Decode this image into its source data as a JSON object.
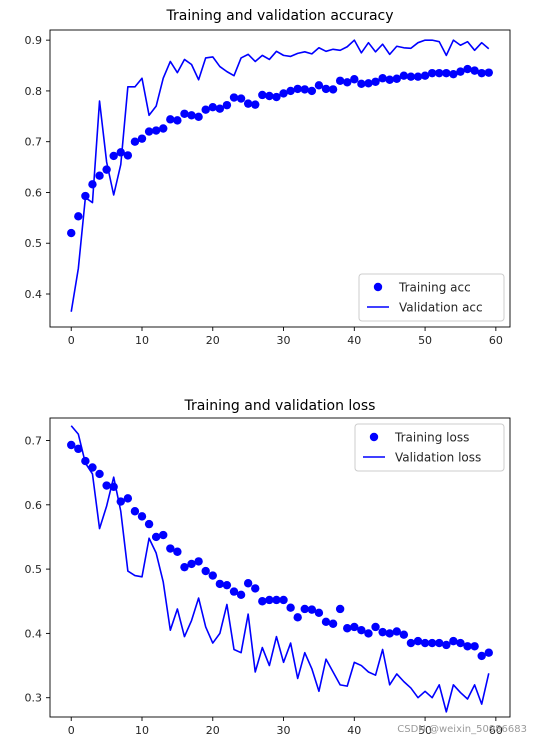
{
  "chart_data": [
    {
      "type": "line",
      "title": "Training and validation accuracy",
      "xlabel": "",
      "ylabel": "",
      "xlim": [
        -3,
        62
      ],
      "ylim": [
        0.335,
        0.92
      ],
      "xticks": [
        0,
        10,
        20,
        30,
        40,
        50,
        60
      ],
      "yticks": [
        0.4,
        0.5,
        0.6,
        0.7,
        0.8,
        0.9
      ],
      "legend": "lower-right",
      "grid": false,
      "series": [
        {
          "name": "Training acc",
          "style": "dots",
          "color": "#0000ff",
          "x": [
            0,
            1,
            2,
            3,
            4,
            5,
            6,
            7,
            8,
            9,
            10,
            11,
            12,
            13,
            14,
            15,
            16,
            17,
            18,
            19,
            20,
            21,
            22,
            23,
            24,
            25,
            26,
            27,
            28,
            29,
            30,
            31,
            32,
            33,
            34,
            35,
            36,
            37,
            38,
            39,
            40,
            41,
            42,
            43,
            44,
            45,
            46,
            47,
            48,
            49,
            50,
            51,
            52,
            53,
            54,
            55,
            56,
            57,
            58,
            59
          ],
          "y": [
            0.52,
            0.553,
            0.593,
            0.616,
            0.633,
            0.645,
            0.672,
            0.679,
            0.673,
            0.7,
            0.706,
            0.72,
            0.722,
            0.726,
            0.744,
            0.742,
            0.755,
            0.752,
            0.749,
            0.763,
            0.768,
            0.765,
            0.772,
            0.787,
            0.785,
            0.775,
            0.773,
            0.792,
            0.79,
            0.788,
            0.795,
            0.8,
            0.804,
            0.803,
            0.8,
            0.811,
            0.804,
            0.803,
            0.82,
            0.817,
            0.823,
            0.814,
            0.815,
            0.818,
            0.825,
            0.822,
            0.824,
            0.83,
            0.828,
            0.828,
            0.83,
            0.835,
            0.835,
            0.835,
            0.833,
            0.838,
            0.843,
            0.84,
            0.835,
            0.836
          ]
        },
        {
          "name": "Validation acc",
          "style": "line",
          "color": "#0000ff",
          "x": [
            0,
            1,
            2,
            3,
            4,
            5,
            6,
            7,
            8,
            9,
            10,
            11,
            12,
            13,
            14,
            15,
            16,
            17,
            18,
            19,
            20,
            21,
            22,
            23,
            24,
            25,
            26,
            27,
            28,
            29,
            30,
            31,
            32,
            33,
            34,
            35,
            36,
            37,
            38,
            39,
            40,
            41,
            42,
            43,
            44,
            45,
            46,
            47,
            48,
            49,
            50,
            51,
            52,
            53,
            54,
            55,
            56,
            57,
            58,
            59
          ],
          "y": [
            0.365,
            0.45,
            0.59,
            0.58,
            0.78,
            0.66,
            0.595,
            0.655,
            0.808,
            0.808,
            0.825,
            0.752,
            0.77,
            0.825,
            0.858,
            0.836,
            0.862,
            0.852,
            0.822,
            0.865,
            0.867,
            0.848,
            0.838,
            0.83,
            0.865,
            0.872,
            0.858,
            0.87,
            0.862,
            0.878,
            0.87,
            0.868,
            0.874,
            0.877,
            0.873,
            0.885,
            0.878,
            0.882,
            0.88,
            0.887,
            0.9,
            0.875,
            0.895,
            0.877,
            0.892,
            0.872,
            0.888,
            0.885,
            0.884,
            0.895,
            0.9,
            0.9,
            0.897,
            0.87,
            0.9,
            0.89,
            0.897,
            0.88,
            0.895,
            0.883
          ]
        }
      ]
    },
    {
      "type": "line",
      "title": "Training and validation loss",
      "xlabel": "",
      "ylabel": "",
      "xlim": [
        -3,
        62
      ],
      "ylim": [
        0.27,
        0.735
      ],
      "xticks": [
        0,
        10,
        20,
        30,
        40,
        50,
        60
      ],
      "yticks": [
        0.3,
        0.4,
        0.5,
        0.6,
        0.7
      ],
      "legend": "top-right",
      "grid": false,
      "series": [
        {
          "name": "Training loss",
          "style": "dots",
          "color": "#0000ff",
          "x": [
            0,
            1,
            2,
            3,
            4,
            5,
            6,
            7,
            8,
            9,
            10,
            11,
            12,
            13,
            14,
            15,
            16,
            17,
            18,
            19,
            20,
            21,
            22,
            23,
            24,
            25,
            26,
            27,
            28,
            29,
            30,
            31,
            32,
            33,
            34,
            35,
            36,
            37,
            38,
            39,
            40,
            41,
            42,
            43,
            44,
            45,
            46,
            47,
            48,
            49,
            50,
            51,
            52,
            53,
            54,
            55,
            56,
            57,
            58,
            59
          ],
          "y": [
            0.693,
            0.687,
            0.668,
            0.658,
            0.648,
            0.63,
            0.628,
            0.605,
            0.61,
            0.59,
            0.582,
            0.57,
            0.55,
            0.553,
            0.532,
            0.527,
            0.503,
            0.508,
            0.512,
            0.497,
            0.49,
            0.477,
            0.475,
            0.465,
            0.46,
            0.478,
            0.47,
            0.45,
            0.452,
            0.452,
            0.452,
            0.44,
            0.425,
            0.438,
            0.437,
            0.432,
            0.418,
            0.415,
            0.438,
            0.408,
            0.41,
            0.405,
            0.4,
            0.41,
            0.402,
            0.4,
            0.403,
            0.398,
            0.385,
            0.388,
            0.385,
            0.385,
            0.385,
            0.382,
            0.388,
            0.385,
            0.38,
            0.38,
            0.365,
            0.37
          ]
        },
        {
          "name": "Validation loss",
          "style": "line",
          "color": "#0000ff",
          "x": [
            0,
            1,
            2,
            3,
            4,
            5,
            6,
            7,
            8,
            9,
            10,
            11,
            12,
            13,
            14,
            15,
            16,
            17,
            18,
            19,
            20,
            21,
            22,
            23,
            24,
            25,
            26,
            27,
            28,
            29,
            30,
            31,
            32,
            33,
            34,
            35,
            36,
            37,
            38,
            39,
            40,
            41,
            42,
            43,
            44,
            45,
            46,
            47,
            48,
            49,
            50,
            51,
            52,
            53,
            54,
            55,
            56,
            57,
            58,
            59
          ],
          "y": [
            0.723,
            0.71,
            0.665,
            0.648,
            0.563,
            0.598,
            0.643,
            0.59,
            0.497,
            0.49,
            0.488,
            0.548,
            0.525,
            0.48,
            0.405,
            0.438,
            0.395,
            0.42,
            0.455,
            0.41,
            0.385,
            0.4,
            0.445,
            0.375,
            0.37,
            0.43,
            0.34,
            0.378,
            0.35,
            0.395,
            0.355,
            0.385,
            0.33,
            0.37,
            0.345,
            0.31,
            0.36,
            0.34,
            0.32,
            0.318,
            0.355,
            0.35,
            0.34,
            0.335,
            0.375,
            0.32,
            0.337,
            0.325,
            0.315,
            0.3,
            0.31,
            0.3,
            0.32,
            0.278,
            0.32,
            0.308,
            0.298,
            0.32,
            0.29,
            0.338
          ]
        }
      ]
    }
  ],
  "watermark": "CSDN @weixin_50986683"
}
